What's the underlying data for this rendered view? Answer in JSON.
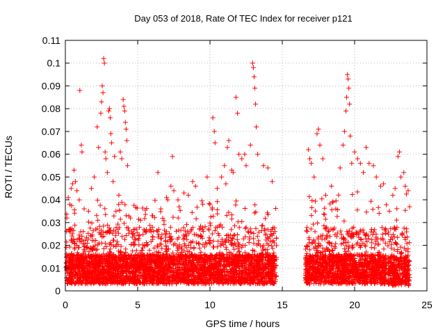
{
  "chart_data": {
    "type": "scatter",
    "title": "Day 053 of 2018, Rate Of TEC Index for receiver p121",
    "xlabel": "GPS time / hours",
    "ylabel": "ROTI / TECUs",
    "xlim": [
      0,
      25
    ],
    "ylim": [
      0,
      0.11
    ],
    "xticks": [
      0,
      5,
      10,
      15,
      20,
      25
    ],
    "xtick_labels": [
      "0",
      "5",
      "10",
      "15",
      "20",
      "25"
    ],
    "yticks": [
      0,
      0.01,
      0.02,
      0.03,
      0.04,
      0.05,
      0.06,
      0.07,
      0.08,
      0.09,
      0.1,
      0.11
    ],
    "ytick_labels": [
      "0",
      "0.01",
      "0.02",
      "0.03",
      "0.04",
      "0.05",
      "0.06",
      "0.07",
      "0.08",
      "0.09",
      "0.1",
      "0.11"
    ],
    "grid": true,
    "marker": "+",
    "color": "#ff0000",
    "series": [
      {
        "points": [
          [
            0.1,
            0.032
          ],
          [
            0.2,
            0.041
          ],
          [
            0.3,
            0.038
          ],
          [
            0.4,
            0.045
          ],
          [
            0.5,
            0.047
          ],
          [
            0.6,
            0.053
          ],
          [
            0.7,
            0.048
          ],
          [
            0.8,
            0.044
          ],
          [
            1.0,
            0.088
          ],
          [
            1.1,
            0.064
          ],
          [
            1.15,
            0.061
          ],
          [
            1.3,
            0.036
          ],
          [
            1.6,
            0.035
          ],
          [
            1.8,
            0.045
          ],
          [
            2.0,
            0.05
          ],
          [
            2.2,
            0.072
          ],
          [
            2.3,
            0.063
          ],
          [
            2.45,
            0.078
          ],
          [
            2.5,
            0.083
          ],
          [
            2.55,
            0.09
          ],
          [
            2.6,
            0.087
          ],
          [
            2.65,
            0.102
          ],
          [
            2.7,
            0.1
          ],
          [
            2.75,
            0.061
          ],
          [
            2.8,
            0.058
          ],
          [
            2.9,
            0.052
          ],
          [
            3.0,
            0.079
          ],
          [
            3.05,
            0.08
          ],
          [
            3.1,
            0.076
          ],
          [
            3.15,
            0.069
          ],
          [
            3.2,
            0.065
          ],
          [
            3.3,
            0.048
          ],
          [
            3.4,
            0.059
          ],
          [
            3.5,
            0.035
          ],
          [
            3.7,
            0.042
          ],
          [
            3.8,
            0.061
          ],
          [
            3.9,
            0.058
          ],
          [
            4.0,
            0.084
          ],
          [
            4.05,
            0.081
          ],
          [
            4.1,
            0.079
          ],
          [
            4.15,
            0.074
          ],
          [
            4.2,
            0.071
          ],
          [
            4.25,
            0.066
          ],
          [
            4.3,
            0.055
          ],
          [
            4.5,
            0.032
          ],
          [
            4.8,
            0.027
          ],
          [
            5.2,
            0.031
          ],
          [
            5.6,
            0.026
          ],
          [
            6.0,
            0.033
          ],
          [
            6.4,
            0.052
          ],
          [
            6.6,
            0.036
          ],
          [
            7.0,
            0.041
          ],
          [
            7.3,
            0.046
          ],
          [
            7.4,
            0.059
          ],
          [
            7.5,
            0.044
          ],
          [
            7.8,
            0.032
          ],
          [
            8.2,
            0.043
          ],
          [
            8.5,
            0.042
          ],
          [
            8.8,
            0.048
          ],
          [
            9.0,
            0.046
          ],
          [
            9.5,
            0.038
          ],
          [
            9.8,
            0.05
          ],
          [
            10.0,
            0.038
          ],
          [
            10.2,
            0.076
          ],
          [
            10.3,
            0.07
          ],
          [
            10.35,
            0.065
          ],
          [
            10.5,
            0.045
          ],
          [
            10.8,
            0.05
          ],
          [
            11.0,
            0.055
          ],
          [
            11.1,
            0.047
          ],
          [
            11.2,
            0.063
          ],
          [
            11.3,
            0.066
          ],
          [
            11.5,
            0.053
          ],
          [
            11.6,
            0.052
          ],
          [
            11.8,
            0.085
          ],
          [
            11.9,
            0.078
          ],
          [
            12.0,
            0.06
          ],
          [
            12.2,
            0.058
          ],
          [
            12.4,
            0.06
          ],
          [
            12.5,
            0.055
          ],
          [
            12.8,
            0.064
          ],
          [
            12.95,
            0.1
          ],
          [
            13.0,
            0.098
          ],
          [
            13.05,
            0.094
          ],
          [
            13.1,
            0.089
          ],
          [
            13.15,
            0.082
          ],
          [
            13.2,
            0.072
          ],
          [
            13.3,
            0.06
          ],
          [
            13.7,
            0.055
          ],
          [
            14.0,
            0.054
          ],
          [
            14.3,
            0.048
          ],
          [
            16.8,
            0.062
          ],
          [
            16.9,
            0.058
          ],
          [
            17.0,
            0.056
          ],
          [
            17.2,
            0.05
          ],
          [
            17.4,
            0.069
          ],
          [
            17.5,
            0.071
          ],
          [
            17.6,
            0.064
          ],
          [
            17.8,
            0.058
          ],
          [
            18.0,
            0.042
          ],
          [
            18.4,
            0.046
          ],
          [
            18.7,
            0.036
          ],
          [
            19.0,
            0.054
          ],
          [
            19.2,
            0.064
          ],
          [
            19.3,
            0.07
          ],
          [
            19.4,
            0.079
          ],
          [
            19.45,
            0.085
          ],
          [
            19.5,
            0.095
          ],
          [
            19.55,
            0.093
          ],
          [
            19.6,
            0.089
          ],
          [
            19.65,
            0.082
          ],
          [
            19.7,
            0.068
          ],
          [
            19.8,
            0.056
          ],
          [
            20.0,
            0.061
          ],
          [
            20.2,
            0.058
          ],
          [
            20.4,
            0.056
          ],
          [
            20.6,
            0.052
          ],
          [
            20.8,
            0.063
          ],
          [
            21.0,
            0.056
          ],
          [
            21.3,
            0.055
          ],
          [
            21.5,
            0.05
          ],
          [
            21.8,
            0.046
          ],
          [
            22.0,
            0.047
          ],
          [
            22.4,
            0.035
          ],
          [
            22.8,
            0.045
          ],
          [
            23.0,
            0.059
          ],
          [
            23.1,
            0.061
          ],
          [
            23.2,
            0.05
          ],
          [
            23.4,
            0.052
          ],
          [
            23.5,
            0.046
          ],
          [
            23.7,
            0.044
          ]
        ]
      }
    ],
    "noise_bands": [
      {
        "x_start": 0.05,
        "x_end": 14.6,
        "base_min": 0.003,
        "base_max": 0.016,
        "upper": 0.04,
        "density": 240
      },
      {
        "x_start": 16.6,
        "x_end": 22.2,
        "base_min": 0.003,
        "base_max": 0.016,
        "upper": 0.045,
        "density": 240
      },
      {
        "x_start": 22.3,
        "x_end": 23.8,
        "base_min": 0.002,
        "base_max": 0.015,
        "upper": 0.043,
        "density": 240
      }
    ]
  }
}
